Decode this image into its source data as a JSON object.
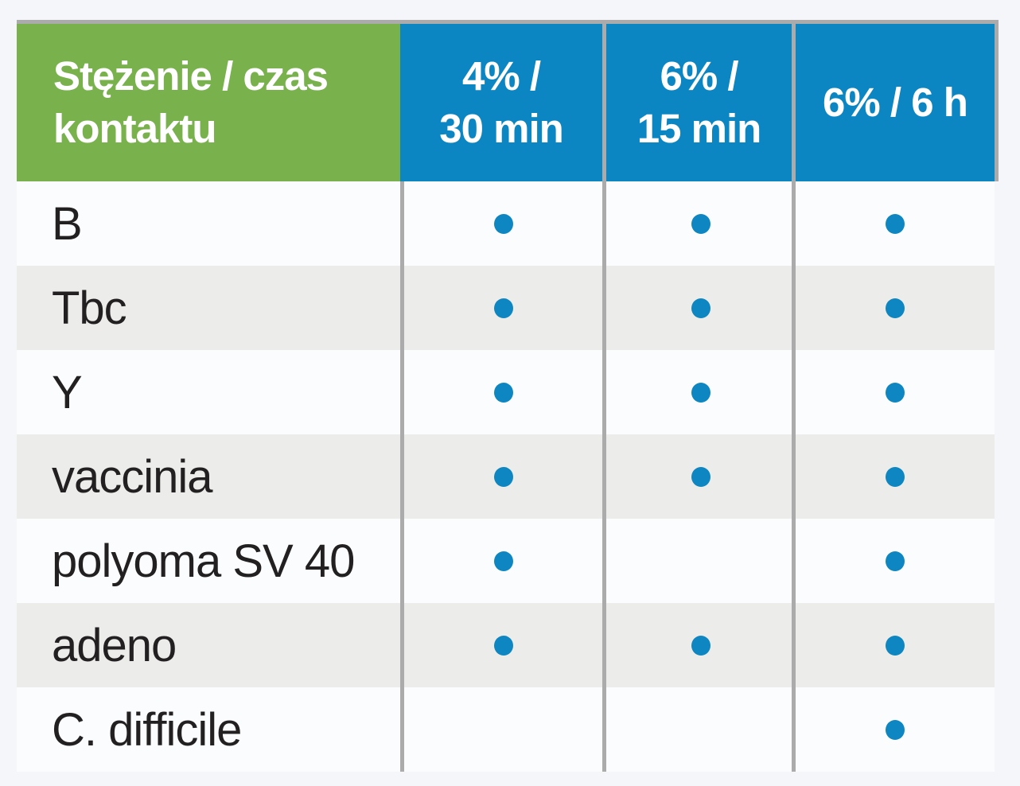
{
  "table": {
    "header": {
      "corner": {
        "lines": [
          "Stężenie / czas",
          "kontaktu"
        ]
      },
      "columns": [
        {
          "lines": [
            "4% /",
            "30 min"
          ]
        },
        {
          "lines": [
            "6% /",
            "15 min"
          ]
        },
        {
          "lines": [
            "6% / 6 h"
          ]
        }
      ]
    },
    "rows": [
      {
        "label": "B",
        "marks": [
          true,
          true,
          true
        ]
      },
      {
        "label": "Tbc",
        "marks": [
          true,
          true,
          true
        ]
      },
      {
        "label": "Y",
        "marks": [
          true,
          true,
          true
        ]
      },
      {
        "label": "vaccinia",
        "marks": [
          true,
          true,
          true
        ]
      },
      {
        "label": "polyoma SV 40",
        "marks": [
          true,
          false,
          true
        ]
      },
      {
        "label": "adeno",
        "marks": [
          true,
          true,
          true
        ]
      },
      {
        "label": "C. difficile",
        "marks": [
          false,
          false,
          true
        ]
      }
    ]
  },
  "chart_data": {
    "type": "table",
    "corner_header": "Stężenie / czas kontaktu",
    "columns": [
      "4% / 30 min",
      "6% / 15 min",
      "6% / 6 h"
    ],
    "rows": [
      "B",
      "Tbc",
      "Y",
      "vaccinia",
      "polyoma SV 40",
      "adeno",
      "C. difficile"
    ],
    "values": [
      [
        1,
        1,
        1
      ],
      [
        1,
        1,
        1
      ],
      [
        1,
        1,
        1
      ],
      [
        1,
        1,
        1
      ],
      [
        1,
        0,
        1
      ],
      [
        1,
        1,
        1
      ],
      [
        0,
        0,
        1
      ]
    ],
    "mark_meaning": "filled blue dot present in cell"
  },
  "colors": {
    "green": "#79b14c",
    "blue": "#0b86c2",
    "dot": "#0e86c1",
    "divider": "#ababab",
    "row_base": "#fbfcfe",
    "row_alt": "#ececea",
    "page_bg": "#f5f6f9",
    "text": "#232021",
    "header_text": "#ffffff"
  },
  "icons": {
    "dot": "presence-dot"
  }
}
